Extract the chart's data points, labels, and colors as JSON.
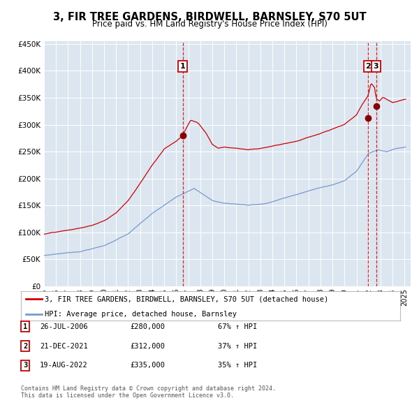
{
  "title1": "3, FIR TREE GARDENS, BIRDWELL, BARNSLEY, S70 5UT",
  "title2": "Price paid vs. HM Land Registry's House Price Index (HPI)",
  "plot_bg_color": "#dce6f1",
  "red_line_color": "#cc0000",
  "blue_line_color": "#7799cc",
  "sale_marker_color": "#880000",
  "dashed_line_color": "#dd0000",
  "legend_label_red": "3, FIR TREE GARDENS, BIRDWELL, BARNSLEY, S70 5UT (detached house)",
  "legend_label_blue": "HPI: Average price, detached house, Barnsley",
  "sales": [
    {
      "date": 2006.55,
      "price": 280000,
      "label": "1"
    },
    {
      "date": 2021.97,
      "price": 312000,
      "label": "2"
    },
    {
      "date": 2022.63,
      "price": 335000,
      "label": "3"
    }
  ],
  "sale_table": [
    {
      "num": "1",
      "date": "26-JUL-2006",
      "price": "£280,000",
      "hpi": "67% ↑ HPI"
    },
    {
      "num": "2",
      "date": "21-DEC-2021",
      "price": "£312,000",
      "hpi": "37% ↑ HPI"
    },
    {
      "num": "3",
      "date": "19-AUG-2022",
      "price": "£335,000",
      "hpi": "35% ↑ HPI"
    }
  ],
  "footer": "Contains HM Land Registry data © Crown copyright and database right 2024.\nThis data is licensed under the Open Government Licence v3.0.",
  "yticks": [
    0,
    50000,
    100000,
    150000,
    200000,
    250000,
    300000,
    350000,
    400000,
    450000
  ],
  "xstart": 1995.0,
  "xend": 2025.5
}
